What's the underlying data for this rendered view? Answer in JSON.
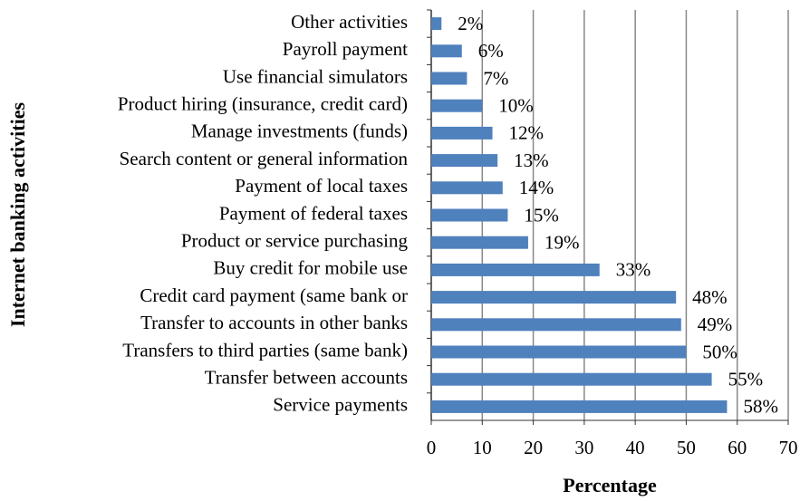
{
  "chart_data": {
    "type": "bar",
    "orientation": "horizontal",
    "xlabel": "Percentage",
    "ylabel": "Internet banking activities",
    "categories": [
      "Other activities",
      "Payroll payment",
      "Use financial simulators",
      "Product hiring (insurance, credit card)",
      "Manage investments (funds)",
      "Search content or general information",
      "Payment of local taxes",
      "Payment of federal taxes",
      "Product or service purchasing",
      "Buy credit for mobile use",
      "Credit card payment (same bank or",
      "Transfer to accounts in other banks",
      "Transfers to third parties (same bank)",
      "Transfer between accounts",
      "Service payments"
    ],
    "values": [
      2,
      6,
      7,
      10,
      12,
      13,
      14,
      15,
      19,
      33,
      48,
      49,
      50,
      55,
      58
    ],
    "value_labels": [
      "2%",
      "6%",
      "7%",
      "10%",
      "12%",
      "13%",
      "14%",
      "15%",
      "19%",
      "33%",
      "48%",
      "49%",
      "50%",
      "55%",
      "58%"
    ],
    "color": "#4f81bd",
    "xlim": [
      0,
      70
    ],
    "xticks": [
      0,
      10,
      20,
      30,
      40,
      50,
      60,
      70
    ],
    "grid": true
  }
}
